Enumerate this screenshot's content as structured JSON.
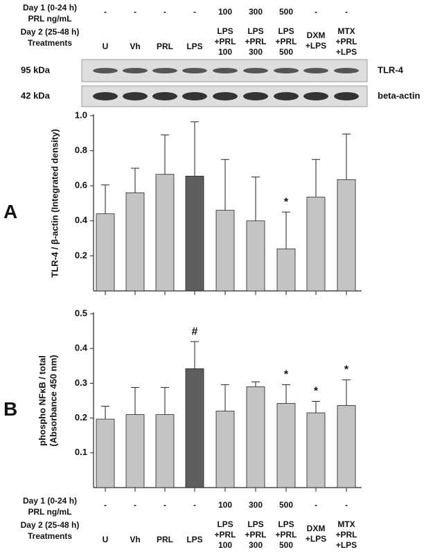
{
  "treatment_header": {
    "day1_label": [
      "Day 1 (0-24 h)",
      "PRL ng/mL"
    ],
    "day1_values": [
      "-",
      "-",
      "-",
      "-",
      "100",
      "300",
      "500",
      "-",
      "-"
    ],
    "day2_label": [
      "Day 2 (25-48 h)",
      "Treatments"
    ],
    "treatments": [
      [
        "U"
      ],
      [
        "Vh"
      ],
      [
        "PRL"
      ],
      [
        "LPS"
      ],
      [
        "LPS",
        "+PRL",
        "100"
      ],
      [
        "LPS",
        "+PRL",
        "300"
      ],
      [
        "LPS",
        "+PRL",
        "500"
      ],
      [
        "DXM",
        "+LPS"
      ],
      [
        "MTX",
        "+PRL",
        "+LPS"
      ]
    ]
  },
  "blot": {
    "bands": [
      {
        "size": "95 kDa",
        "protein": "TLR-4"
      },
      {
        "size": "42 kDa",
        "protein": "beta-actin"
      }
    ]
  },
  "chart_data": [
    {
      "type": "bar",
      "panel": "A",
      "ylabel": [
        "TLR-4 / β-actin (Integrated density)"
      ],
      "values": [
        0.44,
        0.56,
        0.665,
        0.655,
        0.46,
        0.4,
        0.24,
        0.535,
        0.635
      ],
      "errors": [
        0.165,
        0.14,
        0.225,
        0.31,
        0.29,
        0.25,
        0.21,
        0.215,
        0.26
      ],
      "colors": [
        "#c4c4c4",
        "#c4c4c4",
        "#c4c4c4",
        "#5e5e5e",
        "#c4c4c4",
        "#c4c4c4",
        "#c4c4c4",
        "#c4c4c4",
        "#c4c4c4"
      ],
      "annotations": [
        null,
        null,
        null,
        null,
        null,
        null,
        "*",
        null,
        null
      ],
      "ylim": [
        0,
        1
      ],
      "yticks": [
        0.2,
        0.4,
        0.6,
        0.8,
        {
          "value": 1,
          "label": "1.0"
        }
      ]
    },
    {
      "type": "bar",
      "panel": "B",
      "ylabel": [
        "phospho NFκB / total",
        "(Absorbance 450 nm)"
      ],
      "values": [
        0.197,
        0.21,
        0.21,
        0.342,
        0.22,
        0.29,
        0.242,
        0.215,
        0.236
      ],
      "errors": [
        0.037,
        0.078,
        0.078,
        0.078,
        0.076,
        0.014,
        0.054,
        0.033,
        0.074
      ],
      "colors": [
        "#c4c4c4",
        "#c4c4c4",
        "#c4c4c4",
        "#5e5e5e",
        "#c4c4c4",
        "#c4c4c4",
        "#c4c4c4",
        "#c4c4c4",
        "#c4c4c4"
      ],
      "annotations": [
        null,
        null,
        null,
        "#",
        null,
        null,
        "*",
        "*",
        "*"
      ],
      "ylim": [
        0,
        0.5
      ],
      "yticks": [
        0.1,
        0.2,
        0.3,
        0.4,
        0.5
      ]
    }
  ]
}
